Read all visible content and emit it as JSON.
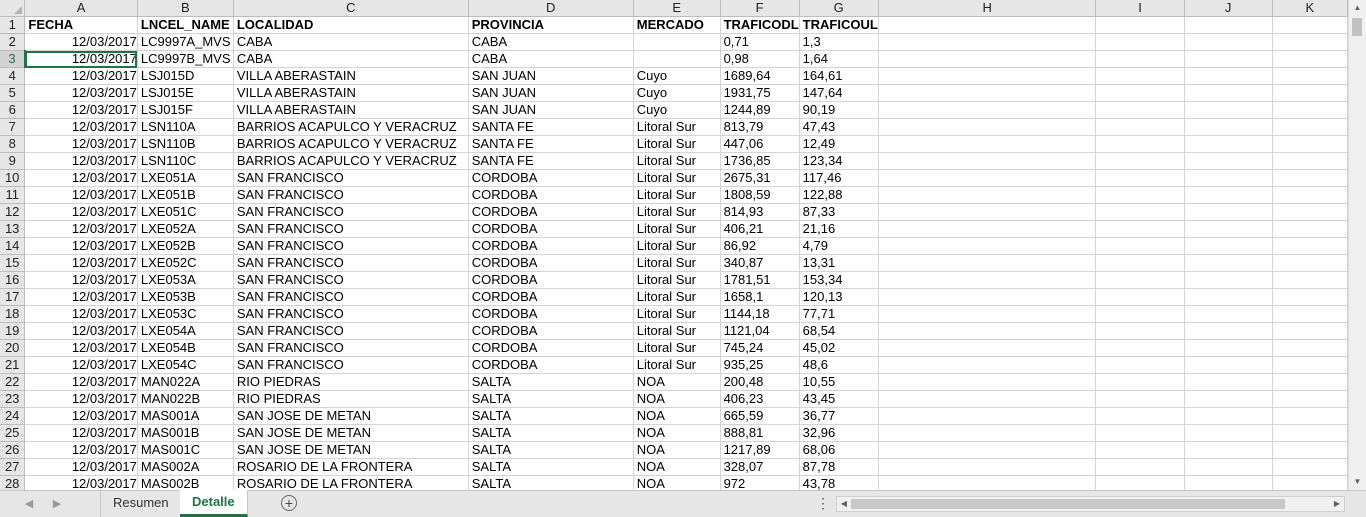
{
  "columns": [
    "A",
    "B",
    "C",
    "D",
    "E",
    "F",
    "G",
    "H",
    "I",
    "J",
    "K"
  ],
  "header_row": {
    "row": "1",
    "cells": [
      "FECHA",
      "LNCEL_NAME",
      "LOCALIDAD",
      "PROVINCIA",
      "MERCADO",
      "TRAFICODL",
      "TRAFICOUL",
      "",
      "",
      "",
      ""
    ]
  },
  "rows": [
    {
      "row": "2",
      "fecha": "12/03/2017",
      "lncel": "LC9997A_MVS",
      "localidad": "CABA",
      "provincia": "CABA",
      "mercado": "",
      "dl": "0,71",
      "ul": "1,3"
    },
    {
      "row": "3",
      "fecha": "12/03/2017",
      "lncel": "LC9997B_MVS",
      "localidad": "CABA",
      "provincia": "CABA",
      "mercado": "",
      "dl": "0,98",
      "ul": "1,64"
    },
    {
      "row": "4",
      "fecha": "12/03/2017",
      "lncel": "LSJ015D",
      "localidad": "VILLA ABERASTAIN",
      "provincia": "SAN JUAN",
      "mercado": "Cuyo",
      "dl": "1689,64",
      "ul": "164,61"
    },
    {
      "row": "5",
      "fecha": "12/03/2017",
      "lncel": "LSJ015E",
      "localidad": "VILLA ABERASTAIN",
      "provincia": "SAN JUAN",
      "mercado": "Cuyo",
      "dl": "1931,75",
      "ul": "147,64"
    },
    {
      "row": "6",
      "fecha": "12/03/2017",
      "lncel": "LSJ015F",
      "localidad": "VILLA ABERASTAIN",
      "provincia": "SAN JUAN",
      "mercado": "Cuyo",
      "dl": "1244,89",
      "ul": "90,19"
    },
    {
      "row": "7",
      "fecha": "12/03/2017",
      "lncel": "LSN110A",
      "localidad": "BARRIOS ACAPULCO Y VERACRUZ",
      "provincia": "SANTA FE",
      "mercado": "Litoral Sur",
      "dl": "813,79",
      "ul": "47,43"
    },
    {
      "row": "8",
      "fecha": "12/03/2017",
      "lncel": "LSN110B",
      "localidad": "BARRIOS ACAPULCO Y VERACRUZ",
      "provincia": "SANTA FE",
      "mercado": "Litoral Sur",
      "dl": "447,06",
      "ul": "12,49"
    },
    {
      "row": "9",
      "fecha": "12/03/2017",
      "lncel": "LSN110C",
      "localidad": "BARRIOS ACAPULCO Y VERACRUZ",
      "provincia": "SANTA FE",
      "mercado": "Litoral Sur",
      "dl": "1736,85",
      "ul": "123,34"
    },
    {
      "row": "10",
      "fecha": "12/03/2017",
      "lncel": "LXE051A",
      "localidad": "SAN FRANCISCO",
      "provincia": "CORDOBA",
      "mercado": "Litoral Sur",
      "dl": "2675,31",
      "ul": "117,46"
    },
    {
      "row": "11",
      "fecha": "12/03/2017",
      "lncel": "LXE051B",
      "localidad": "SAN FRANCISCO",
      "provincia": "CORDOBA",
      "mercado": "Litoral Sur",
      "dl": "1808,59",
      "ul": "122,88"
    },
    {
      "row": "12",
      "fecha": "12/03/2017",
      "lncel": "LXE051C",
      "localidad": "SAN FRANCISCO",
      "provincia": "CORDOBA",
      "mercado": "Litoral Sur",
      "dl": "814,93",
      "ul": "87,33"
    },
    {
      "row": "13",
      "fecha": "12/03/2017",
      "lncel": "LXE052A",
      "localidad": "SAN FRANCISCO",
      "provincia": "CORDOBA",
      "mercado": "Litoral Sur",
      "dl": "406,21",
      "ul": "21,16"
    },
    {
      "row": "14",
      "fecha": "12/03/2017",
      "lncel": "LXE052B",
      "localidad": "SAN FRANCISCO",
      "provincia": "CORDOBA",
      "mercado": "Litoral Sur",
      "dl": "86,92",
      "ul": "4,79"
    },
    {
      "row": "15",
      "fecha": "12/03/2017",
      "lncel": "LXE052C",
      "localidad": "SAN FRANCISCO",
      "provincia": "CORDOBA",
      "mercado": "Litoral Sur",
      "dl": "340,87",
      "ul": "13,31"
    },
    {
      "row": "16",
      "fecha": "12/03/2017",
      "lncel": "LXE053A",
      "localidad": "SAN FRANCISCO",
      "provincia": "CORDOBA",
      "mercado": "Litoral Sur",
      "dl": "1781,51",
      "ul": "153,34"
    },
    {
      "row": "17",
      "fecha": "12/03/2017",
      "lncel": "LXE053B",
      "localidad": "SAN FRANCISCO",
      "provincia": "CORDOBA",
      "mercado": "Litoral Sur",
      "dl": "1658,1",
      "ul": "120,13"
    },
    {
      "row": "18",
      "fecha": "12/03/2017",
      "lncel": "LXE053C",
      "localidad": "SAN FRANCISCO",
      "provincia": "CORDOBA",
      "mercado": "Litoral Sur",
      "dl": "1144,18",
      "ul": "77,71"
    },
    {
      "row": "19",
      "fecha": "12/03/2017",
      "lncel": "LXE054A",
      "localidad": "SAN FRANCISCO",
      "provincia": "CORDOBA",
      "mercado": "Litoral Sur",
      "dl": "1121,04",
      "ul": "68,54"
    },
    {
      "row": "20",
      "fecha": "12/03/2017",
      "lncel": "LXE054B",
      "localidad": "SAN FRANCISCO",
      "provincia": "CORDOBA",
      "mercado": "Litoral Sur",
      "dl": "745,24",
      "ul": "45,02"
    },
    {
      "row": "21",
      "fecha": "12/03/2017",
      "lncel": "LXE054C",
      "localidad": "SAN FRANCISCO",
      "provincia": "CORDOBA",
      "mercado": "Litoral Sur",
      "dl": "935,25",
      "ul": "48,6"
    },
    {
      "row": "22",
      "fecha": "12/03/2017",
      "lncel": "MAN022A",
      "localidad": "RIO PIEDRAS",
      "provincia": "SALTA",
      "mercado": "NOA",
      "dl": "200,48",
      "ul": "10,55"
    },
    {
      "row": "23",
      "fecha": "12/03/2017",
      "lncel": "MAN022B",
      "localidad": "RIO PIEDRAS",
      "provincia": "SALTA",
      "mercado": "NOA",
      "dl": "406,23",
      "ul": "43,45"
    },
    {
      "row": "24",
      "fecha": "12/03/2017",
      "lncel": "MAS001A",
      "localidad": "SAN JOSE DE METAN",
      "provincia": "SALTA",
      "mercado": "NOA",
      "dl": "665,59",
      "ul": "36,77"
    },
    {
      "row": "25",
      "fecha": "12/03/2017",
      "lncel": "MAS001B",
      "localidad": "SAN JOSE DE METAN",
      "provincia": "SALTA",
      "mercado": "NOA",
      "dl": "888,81",
      "ul": "32,96"
    },
    {
      "row": "26",
      "fecha": "12/03/2017",
      "lncel": "MAS001C",
      "localidad": "SAN JOSE DE METAN",
      "provincia": "SALTA",
      "mercado": "NOA",
      "dl": "1217,89",
      "ul": "68,06"
    },
    {
      "row": "27",
      "fecha": "12/03/2017",
      "lncel": "MAS002A",
      "localidad": "ROSARIO DE LA FRONTERA",
      "provincia": "SALTA",
      "mercado": "NOA",
      "dl": "328,07",
      "ul": "87,78"
    },
    {
      "row": "28",
      "fecha": "12/03/2017",
      "lncel": "MAS002B",
      "localidad": "ROSARIO DE LA FRONTERA",
      "provincia": "SALTA",
      "mercado": "NOA",
      "dl": "972",
      "ul": "43,78"
    }
  ],
  "active_row": "3",
  "sheet_tabs": [
    {
      "label": "Resumen",
      "active": false
    },
    {
      "label": "Detalle",
      "active": true
    }
  ],
  "icons": {
    "nav_prev": "prev-sheet-icon",
    "nav_next": "next-sheet-icon",
    "add_sheet": "add-sheet-icon",
    "splitter": "tab-splitter-icon"
  },
  "colors": {
    "accent": "#217346",
    "header_bg": "#e6e6e6",
    "grid_line": "#d4d4d4"
  }
}
